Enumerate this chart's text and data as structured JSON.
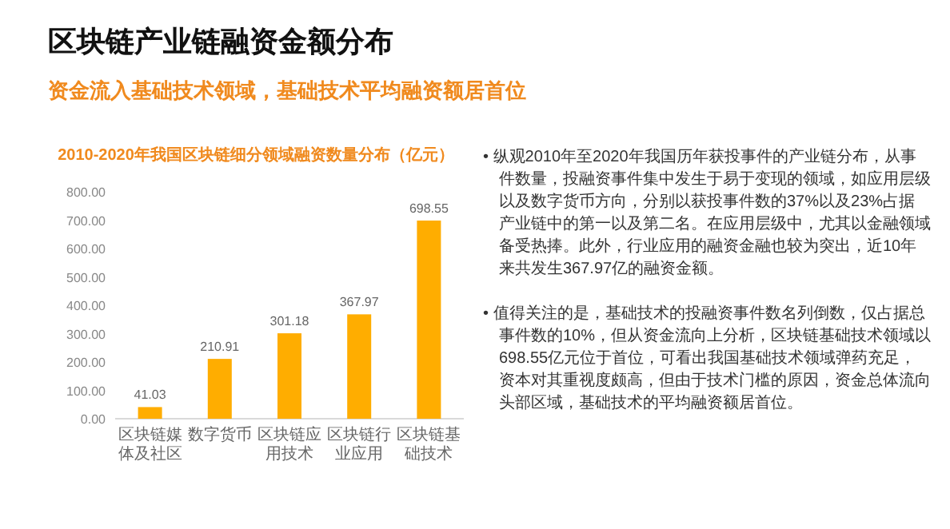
{
  "chart_data": {
    "type": "bar",
    "title": "区块链产业链融资金额分布",
    "subtitle": "资金流入基础技术领域，基础技术平均融资额居首位",
    "annotations": [
      "2010-2020年我国区块链细分领域融资数量分布（亿元）",
      "• 纵观2010年至2020年我国历年获投事件的产业链分布，从事件数量，投融资事件集中发生于易于变现的领域，如应用层级以及数字货币方向，分别以获投事件数的37%以及23%占据产业链中的第一以及第二名。在应用层级中，尤其以金融领域备受热捧。此外，行业应用的融资金融也较为突出，近10年来共发生367.97亿的融资金额。",
      "• 值得关注的是，基础技术的投融资事件数名列倒数，仅占据总事件数的10%，但从资金流向上分析，区块链基础技术领域以698.55亿元位于首位，可看出我国基础技术领域弹药充足，资本对其重视度颇高，但由于技术门槛的原因，资金总体流向头部区域，基础技术的平均融资额居首位。"
    ],
    "categories": [
      "区块链媒体及社区",
      "数字货币",
      "区块链应用技术",
      "区块链行业应用",
      "区块链基础技术"
    ],
    "values": [
      41.03,
      210.91,
      301.18,
      367.97,
      698.55
    ],
    "color": "#ffad00",
    "data_labels": true,
    "ylim": [
      0,
      800
    ],
    "yticks": [
      {
        "value": 0,
        "label": "0.00"
      },
      {
        "value": 100,
        "label": "100.00"
      },
      {
        "value": 200,
        "label": "200.00"
      },
      {
        "value": 300,
        "label": "300.00"
      },
      {
        "value": 400,
        "label": "400.00"
      },
      {
        "value": 500,
        "label": "500.00"
      },
      {
        "value": 600,
        "label": "600.00"
      },
      {
        "value": 700,
        "label": "700.00"
      },
      {
        "value": 800,
        "label": "800.00"
      }
    ],
    "grid": false
  }
}
